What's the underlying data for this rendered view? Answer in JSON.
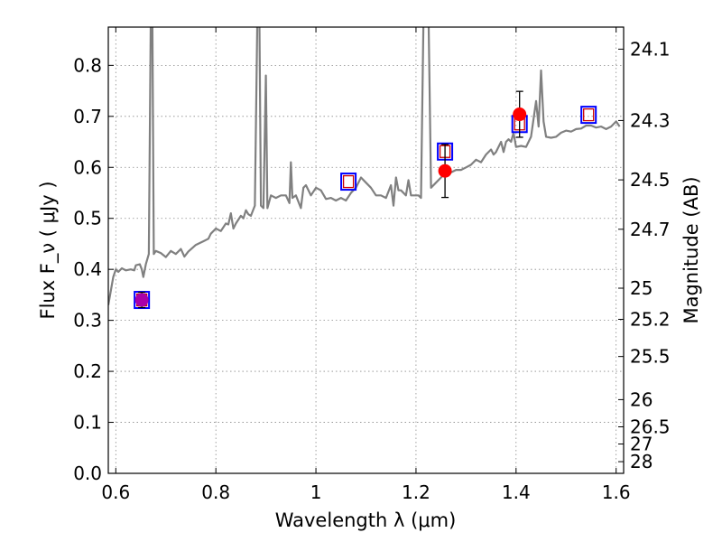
{
  "chart_data": {
    "type": "scatter",
    "xlabel": "Wavelength  λ (μm)",
    "ylabel": "Flux  F_ν  ( μJy )",
    "y2label": "Magnitude (AB)",
    "xlim": [
      0.585,
      1.615
    ],
    "ylim": [
      0.0,
      0.875
    ],
    "grid": true,
    "x_ticks": [
      0.6,
      0.8,
      1.0,
      1.2,
      1.4,
      1.6
    ],
    "x_tick_labels": [
      "0.6",
      "0.8",
      "1",
      "1.2",
      "1.4",
      "1.6"
    ],
    "y_ticks": [
      0.0,
      0.1,
      0.2,
      0.3,
      0.4,
      0.5,
      0.6,
      0.7,
      0.8
    ],
    "y_tick_labels": [
      "0.0",
      "0.1",
      "0.2",
      "0.3",
      "0.4",
      "0.5",
      "0.6",
      "0.7",
      "0.8"
    ],
    "y2_ticks": [
      {
        "label": "24.1",
        "mag": 24.1
      },
      {
        "label": "24.3",
        "mag": 24.3
      },
      {
        "label": "24.5",
        "mag": 24.5
      },
      {
        "label": "24.7",
        "mag": 24.7
      },
      {
        "label": "25",
        "mag": 25.0
      },
      {
        "label": "25.2",
        "mag": 25.2
      },
      {
        "label": "25.5",
        "mag": 25.5
      },
      {
        "label": "26",
        "mag": 26.0
      },
      {
        "label": "26.5",
        "mag": 26.5
      },
      {
        "label": "27",
        "mag": 27.0
      },
      {
        "label": "28",
        "mag": 28.0
      }
    ],
    "colors": {
      "spectrum": "#808080",
      "observed": "#ff0000",
      "model_outer": "#0000ff",
      "model_inner": "#cc0000",
      "overlap": "#aa00aa",
      "errorbar": "#000000"
    },
    "spectrum": [
      [
        0.585,
        0.33
      ],
      [
        0.595,
        0.385
      ],
      [
        0.6,
        0.4
      ],
      [
        0.605,
        0.395
      ],
      [
        0.612,
        0.402
      ],
      [
        0.62,
        0.398
      ],
      [
        0.63,
        0.4
      ],
      [
        0.637,
        0.398
      ],
      [
        0.64,
        0.408
      ],
      [
        0.648,
        0.41
      ],
      [
        0.652,
        0.4
      ],
      [
        0.655,
        0.385
      ],
      [
        0.66,
        0.41
      ],
      [
        0.666,
        0.43
      ],
      [
        0.67,
        0.9
      ],
      [
        0.673,
        0.9
      ],
      [
        0.676,
        0.43
      ],
      [
        0.68,
        0.436
      ],
      [
        0.69,
        0.432
      ],
      [
        0.7,
        0.424
      ],
      [
        0.71,
        0.436
      ],
      [
        0.72,
        0.43
      ],
      [
        0.73,
        0.44
      ],
      [
        0.737,
        0.425
      ],
      [
        0.745,
        0.435
      ],
      [
        0.76,
        0.448
      ],
      [
        0.775,
        0.455
      ],
      [
        0.785,
        0.46
      ],
      [
        0.79,
        0.47
      ],
      [
        0.8,
        0.48
      ],
      [
        0.81,
        0.475
      ],
      [
        0.82,
        0.49
      ],
      [
        0.825,
        0.488
      ],
      [
        0.83,
        0.51
      ],
      [
        0.835,
        0.48
      ],
      [
        0.84,
        0.49
      ],
      [
        0.85,
        0.505
      ],
      [
        0.855,
        0.5
      ],
      [
        0.86,
        0.516
      ],
      [
        0.865,
        0.508
      ],
      [
        0.87,
        0.505
      ],
      [
        0.878,
        0.525
      ],
      [
        0.883,
        0.9
      ],
      [
        0.887,
        0.9
      ],
      [
        0.89,
        0.525
      ],
      [
        0.895,
        0.52
      ],
      [
        0.9,
        0.78
      ],
      [
        0.903,
        0.52
      ],
      [
        0.91,
        0.545
      ],
      [
        0.92,
        0.54
      ],
      [
        0.93,
        0.545
      ],
      [
        0.94,
        0.545
      ],
      [
        0.947,
        0.53
      ],
      [
        0.95,
        0.61
      ],
      [
        0.953,
        0.54
      ],
      [
        0.96,
        0.545
      ],
      [
        0.97,
        0.52
      ],
      [
        0.975,
        0.56
      ],
      [
        0.98,
        0.565
      ],
      [
        0.99,
        0.545
      ],
      [
        1.0,
        0.56
      ],
      [
        1.01,
        0.555
      ],
      [
        1.02,
        0.538
      ],
      [
        1.03,
        0.54
      ],
      [
        1.04,
        0.535
      ],
      [
        1.05,
        0.54
      ],
      [
        1.06,
        0.535
      ],
      [
        1.07,
        0.55
      ],
      [
        1.08,
        0.56
      ],
      [
        1.09,
        0.58
      ],
      [
        1.1,
        0.57
      ],
      [
        1.11,
        0.56
      ],
      [
        1.12,
        0.545
      ],
      [
        1.13,
        0.545
      ],
      [
        1.14,
        0.54
      ],
      [
        1.15,
        0.565
      ],
      [
        1.155,
        0.525
      ],
      [
        1.16,
        0.58
      ],
      [
        1.165,
        0.555
      ],
      [
        1.17,
        0.555
      ],
      [
        1.18,
        0.545
      ],
      [
        1.185,
        0.575
      ],
      [
        1.19,
        0.545
      ],
      [
        1.2,
        0.545
      ],
      [
        1.205,
        0.545
      ],
      [
        1.21,
        0.54
      ],
      [
        1.215,
        0.9
      ],
      [
        1.225,
        0.9
      ],
      [
        1.23,
        0.56
      ],
      [
        1.24,
        0.57
      ],
      [
        1.25,
        0.58
      ],
      [
        1.26,
        0.59
      ],
      [
        1.27,
        0.59
      ],
      [
        1.28,
        0.595
      ],
      [
        1.29,
        0.595
      ],
      [
        1.3,
        0.6
      ],
      [
        1.31,
        0.605
      ],
      [
        1.32,
        0.615
      ],
      [
        1.33,
        0.61
      ],
      [
        1.34,
        0.625
      ],
      [
        1.35,
        0.635
      ],
      [
        1.355,
        0.625
      ],
      [
        1.36,
        0.63
      ],
      [
        1.37,
        0.65
      ],
      [
        1.375,
        0.63
      ],
      [
        1.38,
        0.65
      ],
      [
        1.385,
        0.655
      ],
      [
        1.39,
        0.65
      ],
      [
        1.395,
        0.668
      ],
      [
        1.4,
        0.64
      ],
      [
        1.41,
        0.642
      ],
      [
        1.42,
        0.64
      ],
      [
        1.43,
        0.66
      ],
      [
        1.44,
        0.73
      ],
      [
        1.445,
        0.68
      ],
      [
        1.45,
        0.79
      ],
      [
        1.455,
        0.69
      ],
      [
        1.46,
        0.66
      ],
      [
        1.47,
        0.658
      ],
      [
        1.48,
        0.66
      ],
      [
        1.49,
        0.668
      ],
      [
        1.5,
        0.672
      ],
      [
        1.51,
        0.67
      ],
      [
        1.52,
        0.675
      ],
      [
        1.53,
        0.676
      ],
      [
        1.54,
        0.682
      ],
      [
        1.55,
        0.682
      ],
      [
        1.56,
        0.678
      ],
      [
        1.57,
        0.68
      ],
      [
        1.58,
        0.675
      ],
      [
        1.59,
        0.68
      ],
      [
        1.6,
        0.69
      ],
      [
        1.607,
        0.68
      ]
    ],
    "observed": [
      {
        "x": 0.652,
        "y": 0.34,
        "yerr": 0.015
      },
      {
        "x": 1.258,
        "y": 0.593,
        "yerr": 0.052
      },
      {
        "x": 1.407,
        "y": 0.704,
        "yerr": 0.045
      }
    ],
    "model": [
      {
        "x": 0.652,
        "y": 0.34
      },
      {
        "x": 1.065,
        "y": 0.572
      },
      {
        "x": 1.258,
        "y": 0.631
      },
      {
        "x": 1.407,
        "y": 0.685
      },
      {
        "x": 1.545,
        "y": 0.703
      }
    ]
  }
}
